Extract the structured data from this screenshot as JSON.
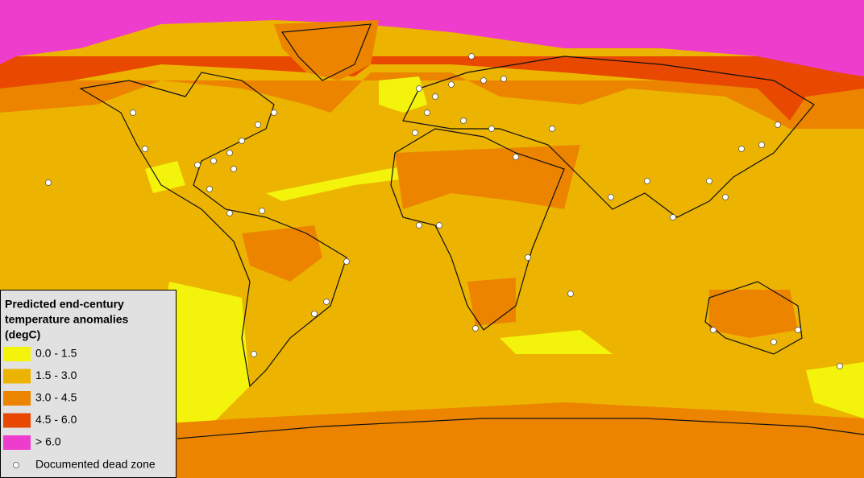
{
  "legend": {
    "title_lines": [
      "Predicted end-century",
      "temperature anomalies",
      "(degC)"
    ],
    "items": [
      {
        "label": "0.0 - 1.5",
        "color": "#f3f30c"
      },
      {
        "label": "1.5 - 3.0",
        "color": "#ecb400"
      },
      {
        "label": "3.0 - 4.5",
        "color": "#ec8400"
      },
      {
        "label": "4.5 - 6.0",
        "color": "#e84800"
      },
      {
        "label": "> 6.0",
        "color": "#ee3ccc"
      }
    ],
    "marker_label": "Documented dead zone"
  }
}
